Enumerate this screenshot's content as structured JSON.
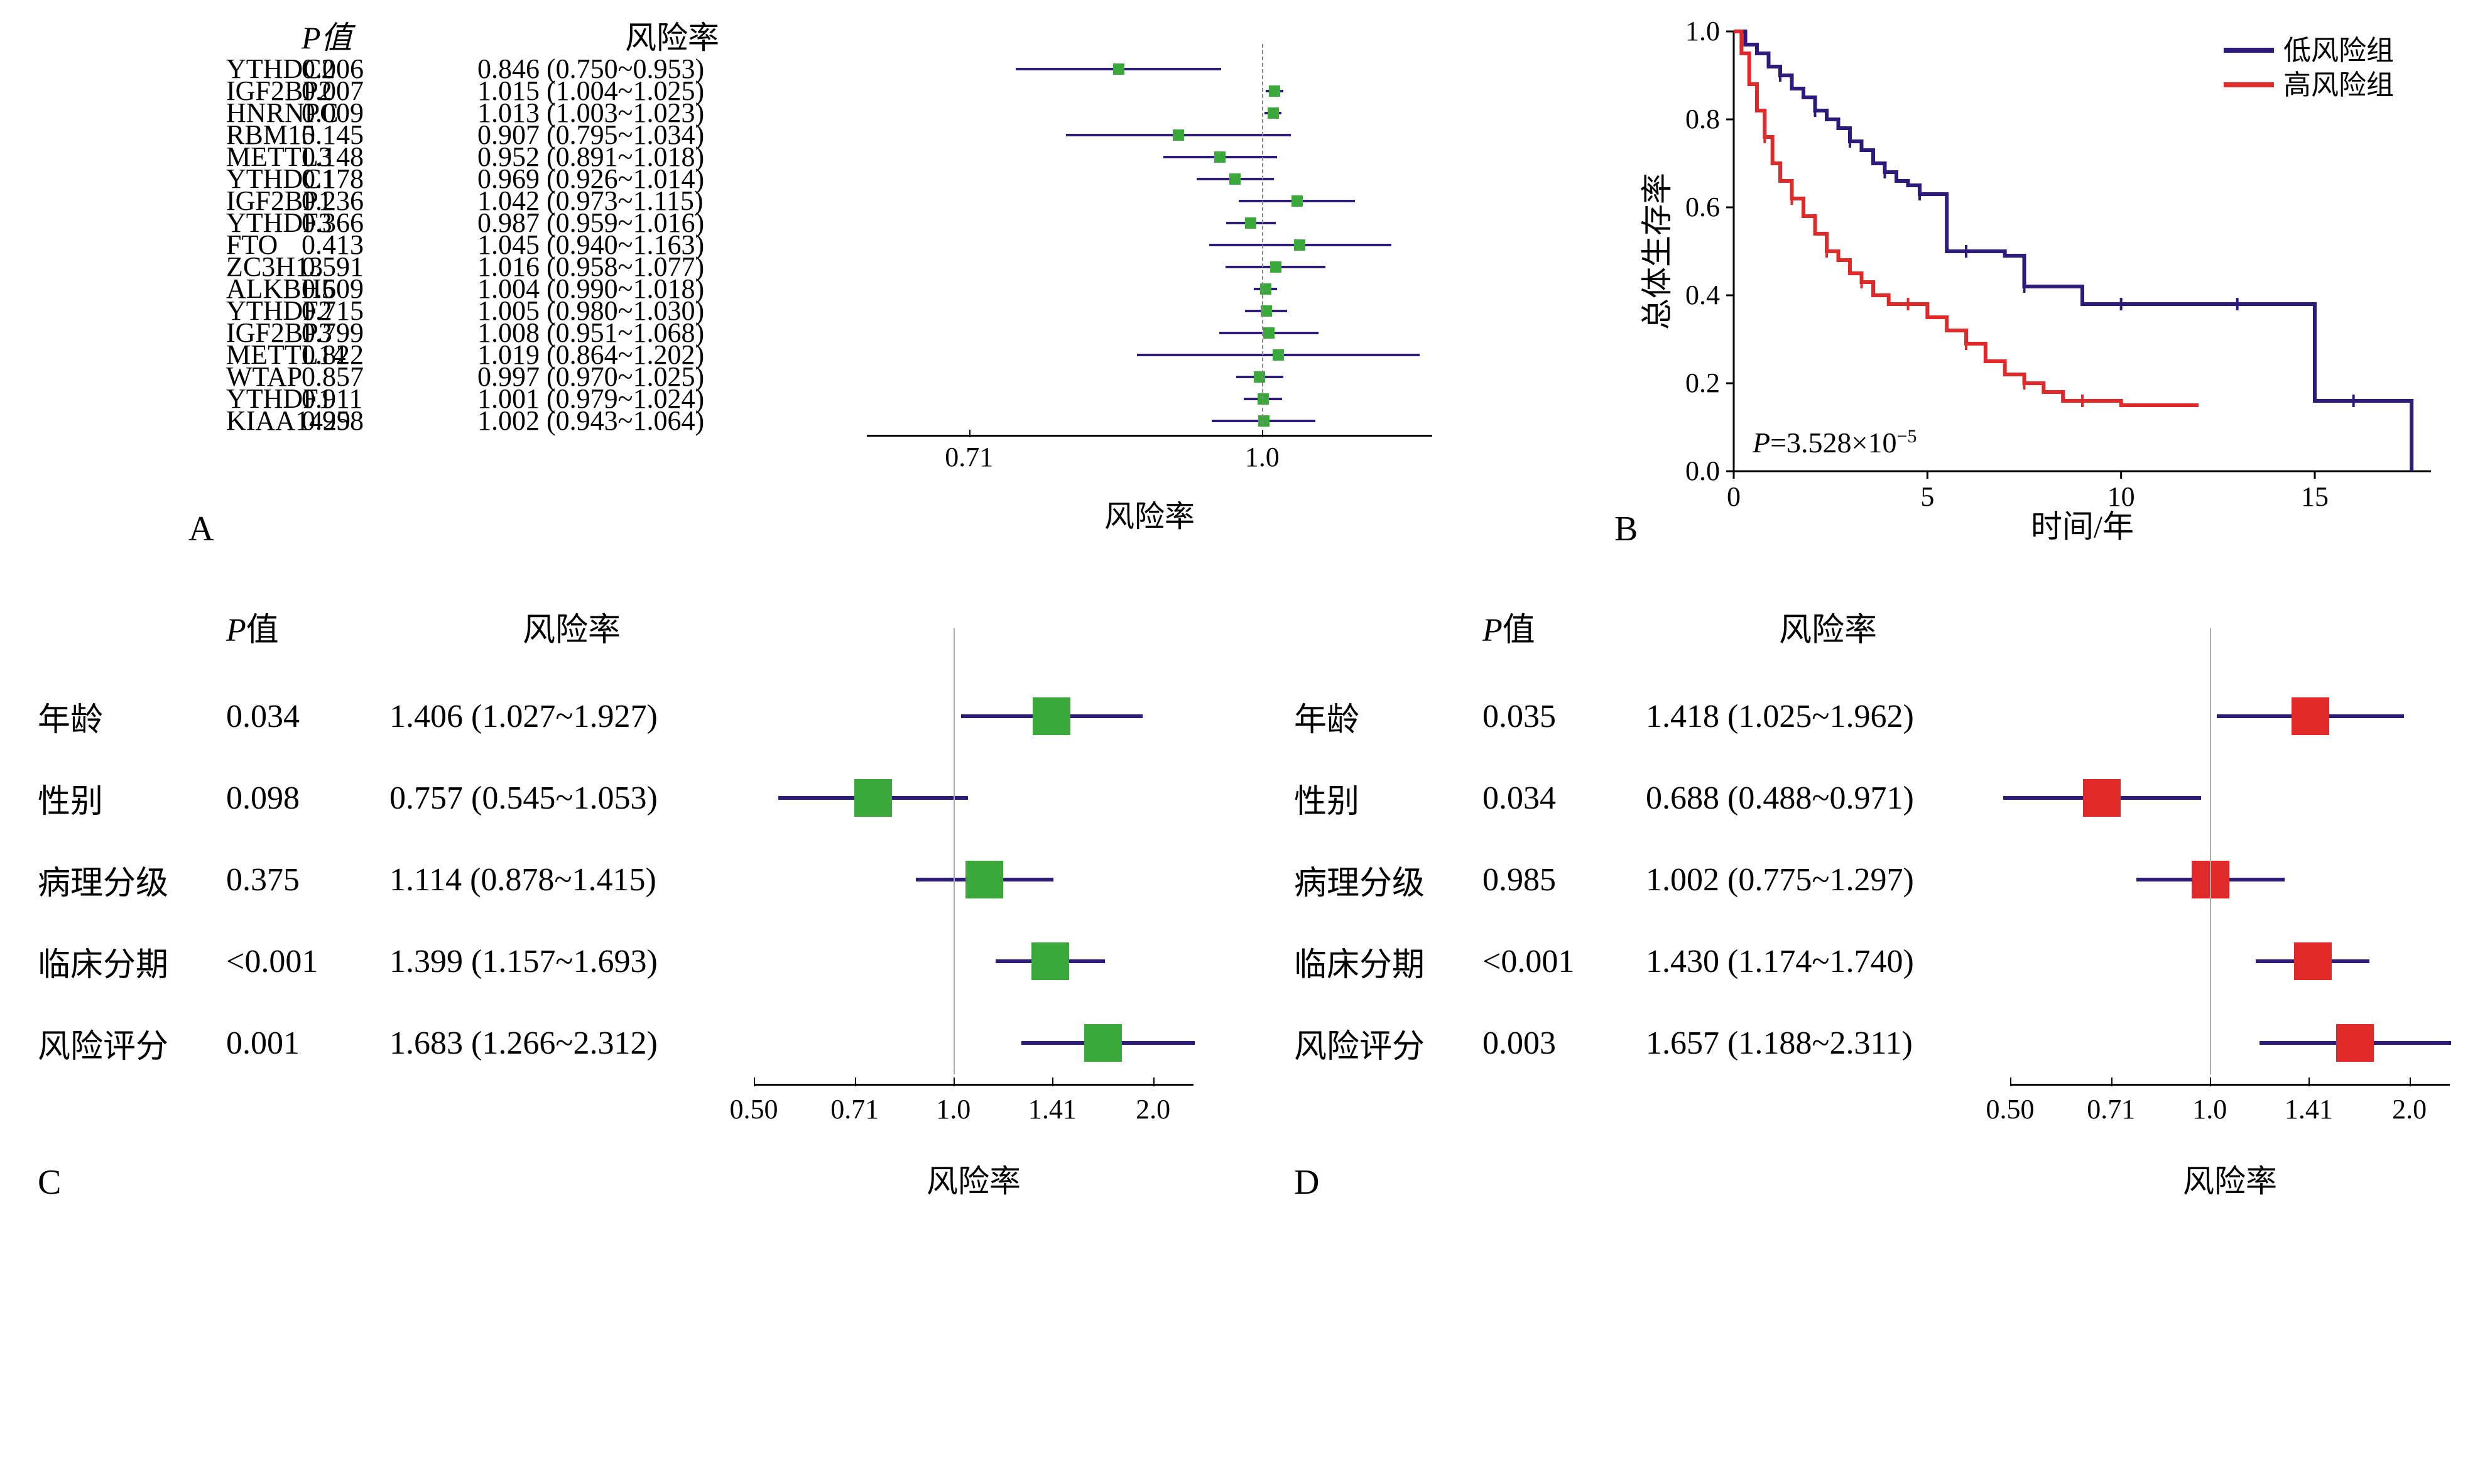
{
  "panel_labels": {
    "A": "A",
    "B": "B",
    "C": "C",
    "D": "D"
  },
  "panelA": {
    "header": {
      "pval": "P值",
      "hr": "风险率"
    },
    "xlabel": "风险率",
    "xlim": [
      0.63,
      1.22
    ],
    "xticks": [
      0.71,
      1.0
    ],
    "ref_line": 1.0,
    "marker_color": "#3ba83b",
    "line_color": "#2e1a7a",
    "rows": [
      {
        "gene": "YTHDC2",
        "pval": "0.006",
        "hr_text": "0.846 (0.750~0.953)",
        "hr": 0.846,
        "lo": 0.75,
        "hi": 0.953
      },
      {
        "gene": "IGF2BP2",
        "pval": "0.007",
        "hr_text": "1.015 (1.004~1.025)",
        "hr": 1.015,
        "lo": 1.004,
        "hi": 1.025
      },
      {
        "gene": "HNRNPC",
        "pval": "0.009",
        "hr_text": "1.013 (1.003~1.023)",
        "hr": 1.013,
        "lo": 1.003,
        "hi": 1.023
      },
      {
        "gene": "RBM15",
        "pval": "0.145",
        "hr_text": "0.907 (0.795~1.034)",
        "hr": 0.907,
        "lo": 0.795,
        "hi": 1.034
      },
      {
        "gene": "METTL3",
        "pval": "0.148",
        "hr_text": "0.952 (0.891~1.018)",
        "hr": 0.952,
        "lo": 0.891,
        "hi": 1.018
      },
      {
        "gene": "YTHDC1",
        "pval": "0.178",
        "hr_text": "0.969 (0.926~1.014)",
        "hr": 0.969,
        "lo": 0.926,
        "hi": 1.014
      },
      {
        "gene": "IGF2BP1",
        "pval": "0.236",
        "hr_text": "1.042 (0.973~1.115)",
        "hr": 1.042,
        "lo": 0.973,
        "hi": 1.115
      },
      {
        "gene": "YTHDF3",
        "pval": "0.366",
        "hr_text": "0.987 (0.959~1.016)",
        "hr": 0.987,
        "lo": 0.959,
        "hi": 1.016
      },
      {
        "gene": "FTO",
        "pval": "0.413",
        "hr_text": "1.045 (0.940~1.163)",
        "hr": 1.045,
        "lo": 0.94,
        "hi": 1.163
      },
      {
        "gene": "ZC3H13",
        "pval": "0.591",
        "hr_text": "1.016 (0.958~1.077)",
        "hr": 1.016,
        "lo": 0.958,
        "hi": 1.077
      },
      {
        "gene": "ALKBH5",
        "pval": "0.609",
        "hr_text": "1.004 (0.990~1.018)",
        "hr": 1.004,
        "lo": 0.99,
        "hi": 1.018
      },
      {
        "gene": "YTHDF2",
        "pval": "0.715",
        "hr_text": "1.005 (0.980~1.030)",
        "hr": 1.005,
        "lo": 0.98,
        "hi": 1.03
      },
      {
        "gene": "IGF2BP3",
        "pval": "0.799",
        "hr_text": "1.008 (0.951~1.068)",
        "hr": 1.008,
        "lo": 0.951,
        "hi": 1.068
      },
      {
        "gene": "METTL14",
        "pval": "0.822",
        "hr_text": "1.019 (0.864~1.202)",
        "hr": 1.019,
        "lo": 0.864,
        "hi": 1.202
      },
      {
        "gene": "WTAP",
        "pval": "0.857",
        "hr_text": "0.997 (0.970~1.025)",
        "hr": 0.997,
        "lo": 0.97,
        "hi": 1.025
      },
      {
        "gene": "YTHDF1",
        "pval": "0.911",
        "hr_text": "1.001 (0.979~1.024)",
        "hr": 1.001,
        "lo": 0.979,
        "hi": 1.024
      },
      {
        "gene": "KIAA1429",
        "pval": "0.958",
        "hr_text": "1.002 (0.943~1.064)",
        "hr": 1.002,
        "lo": 0.943,
        "hi": 1.064
      }
    ]
  },
  "panelB": {
    "ylabel": "总体生存率",
    "xlabel": "时间/年",
    "legend": {
      "low": "低风险组",
      "high": "高风险组"
    },
    "pval_text": "P=3.528×10⁻⁵",
    "xlim": [
      0,
      18
    ],
    "ylim": [
      0,
      1.0
    ],
    "xticks": [
      0,
      5,
      10,
      15
    ],
    "yticks": [
      0,
      0.2,
      0.4,
      0.6,
      0.8,
      1.0
    ],
    "colors": {
      "low": "#2e1a7a",
      "high": "#e02a2a",
      "axis": "#000000"
    },
    "low_curve": [
      [
        0,
        1.0
      ],
      [
        0.3,
        0.97
      ],
      [
        0.6,
        0.95
      ],
      [
        0.9,
        0.92
      ],
      [
        1.2,
        0.9
      ],
      [
        1.5,
        0.87
      ],
      [
        1.8,
        0.85
      ],
      [
        2.1,
        0.82
      ],
      [
        2.4,
        0.8
      ],
      [
        2.7,
        0.78
      ],
      [
        3.0,
        0.75
      ],
      [
        3.3,
        0.73
      ],
      [
        3.6,
        0.7
      ],
      [
        3.9,
        0.68
      ],
      [
        4.2,
        0.66
      ],
      [
        4.5,
        0.65
      ],
      [
        4.8,
        0.63
      ],
      [
        5.1,
        0.63
      ],
      [
        5.5,
        0.5
      ],
      [
        6.0,
        0.5
      ],
      [
        6.5,
        0.5
      ],
      [
        7.0,
        0.49
      ],
      [
        7.5,
        0.42
      ],
      [
        8.0,
        0.42
      ],
      [
        9.0,
        0.38
      ],
      [
        10.0,
        0.38
      ],
      [
        11.0,
        0.38
      ],
      [
        12.0,
        0.38
      ],
      [
        13.0,
        0.38
      ],
      [
        14.0,
        0.38
      ],
      [
        15.0,
        0.16
      ],
      [
        16.0,
        0.16
      ],
      [
        17.0,
        0.16
      ],
      [
        17.5,
        0.0
      ]
    ],
    "high_curve": [
      [
        0,
        1.0
      ],
      [
        0.2,
        0.95
      ],
      [
        0.4,
        0.88
      ],
      [
        0.6,
        0.82
      ],
      [
        0.8,
        0.76
      ],
      [
        1.0,
        0.7
      ],
      [
        1.2,
        0.66
      ],
      [
        1.5,
        0.62
      ],
      [
        1.8,
        0.58
      ],
      [
        2.1,
        0.54
      ],
      [
        2.4,
        0.5
      ],
      [
        2.7,
        0.48
      ],
      [
        3.0,
        0.45
      ],
      [
        3.3,
        0.43
      ],
      [
        3.6,
        0.4
      ],
      [
        4.0,
        0.38
      ],
      [
        4.5,
        0.38
      ],
      [
        5.0,
        0.35
      ],
      [
        5.5,
        0.32
      ],
      [
        6.0,
        0.29
      ],
      [
        6.5,
        0.25
      ],
      [
        7.0,
        0.22
      ],
      [
        7.5,
        0.2
      ],
      [
        8.0,
        0.18
      ],
      [
        8.5,
        0.16
      ],
      [
        9.0,
        0.16
      ],
      [
        10.0,
        0.15
      ],
      [
        11.0,
        0.15
      ],
      [
        12.0,
        0.15
      ]
    ]
  },
  "panelC": {
    "header": {
      "pval": "P值",
      "hr": "风险率"
    },
    "xlabel": "风险率",
    "xlim_log": [
      -0.301,
      0.362
    ],
    "xticks": [
      0.5,
      0.71,
      1.0,
      1.41,
      2.0
    ],
    "ref_line": 1.0,
    "marker_color": "#3ba83b",
    "line_color": "#2e1a7a",
    "marker_size": 60,
    "rows": [
      {
        "name": "年龄",
        "pval": "0.034",
        "hr_text": "1.406 (1.027~1.927)",
        "hr": 1.406,
        "lo": 1.027,
        "hi": 1.927
      },
      {
        "name": "性别",
        "pval": "0.098",
        "hr_text": "0.757 (0.545~1.053)",
        "hr": 0.757,
        "lo": 0.545,
        "hi": 1.053
      },
      {
        "name": "病理分级",
        "pval": "0.375",
        "hr_text": "1.114 (0.878~1.415)",
        "hr": 1.114,
        "lo": 0.878,
        "hi": 1.415
      },
      {
        "name": "临床分期",
        "pval": "<0.001",
        "hr_text": "1.399 (1.157~1.693)",
        "hr": 1.399,
        "lo": 1.157,
        "hi": 1.693
      },
      {
        "name": "风险评分",
        "pval": "0.001",
        "hr_text": "1.683 (1.266~2.312)",
        "hr": 1.683,
        "lo": 1.266,
        "hi": 2.312
      }
    ]
  },
  "panelD": {
    "header": {
      "pval": "P值",
      "hr": "风险率"
    },
    "xlabel": "风险率",
    "xlim_log": [
      -0.301,
      0.362
    ],
    "xticks": [
      0.5,
      0.71,
      1.0,
      1.41,
      2.0
    ],
    "ref_line": 1.0,
    "marker_color": "#e02a2a",
    "line_color": "#2e1a7a",
    "marker_size": 60,
    "rows": [
      {
        "name": "年龄",
        "pval": "0.035",
        "hr_text": "1.418 (1.025~1.962)",
        "hr": 1.418,
        "lo": 1.025,
        "hi": 1.962
      },
      {
        "name": "性别",
        "pval": "0.034",
        "hr_text": "0.688 (0.488~0.971)",
        "hr": 0.688,
        "lo": 0.488,
        "hi": 0.971
      },
      {
        "name": "病理分级",
        "pval": "0.985",
        "hr_text": "1.002 (0.775~1.297)",
        "hr": 1.002,
        "lo": 0.775,
        "hi": 1.297
      },
      {
        "name": "临床分期",
        "pval": "<0.001",
        "hr_text": "1.430 (1.174~1.740)",
        "hr": 1.43,
        "lo": 1.174,
        "hi": 1.74
      },
      {
        "name": "风险评分",
        "pval": "0.003",
        "hr_text": "1.657 (1.188~2.311)",
        "hr": 1.657,
        "lo": 1.188,
        "hi": 2.311
      }
    ]
  }
}
